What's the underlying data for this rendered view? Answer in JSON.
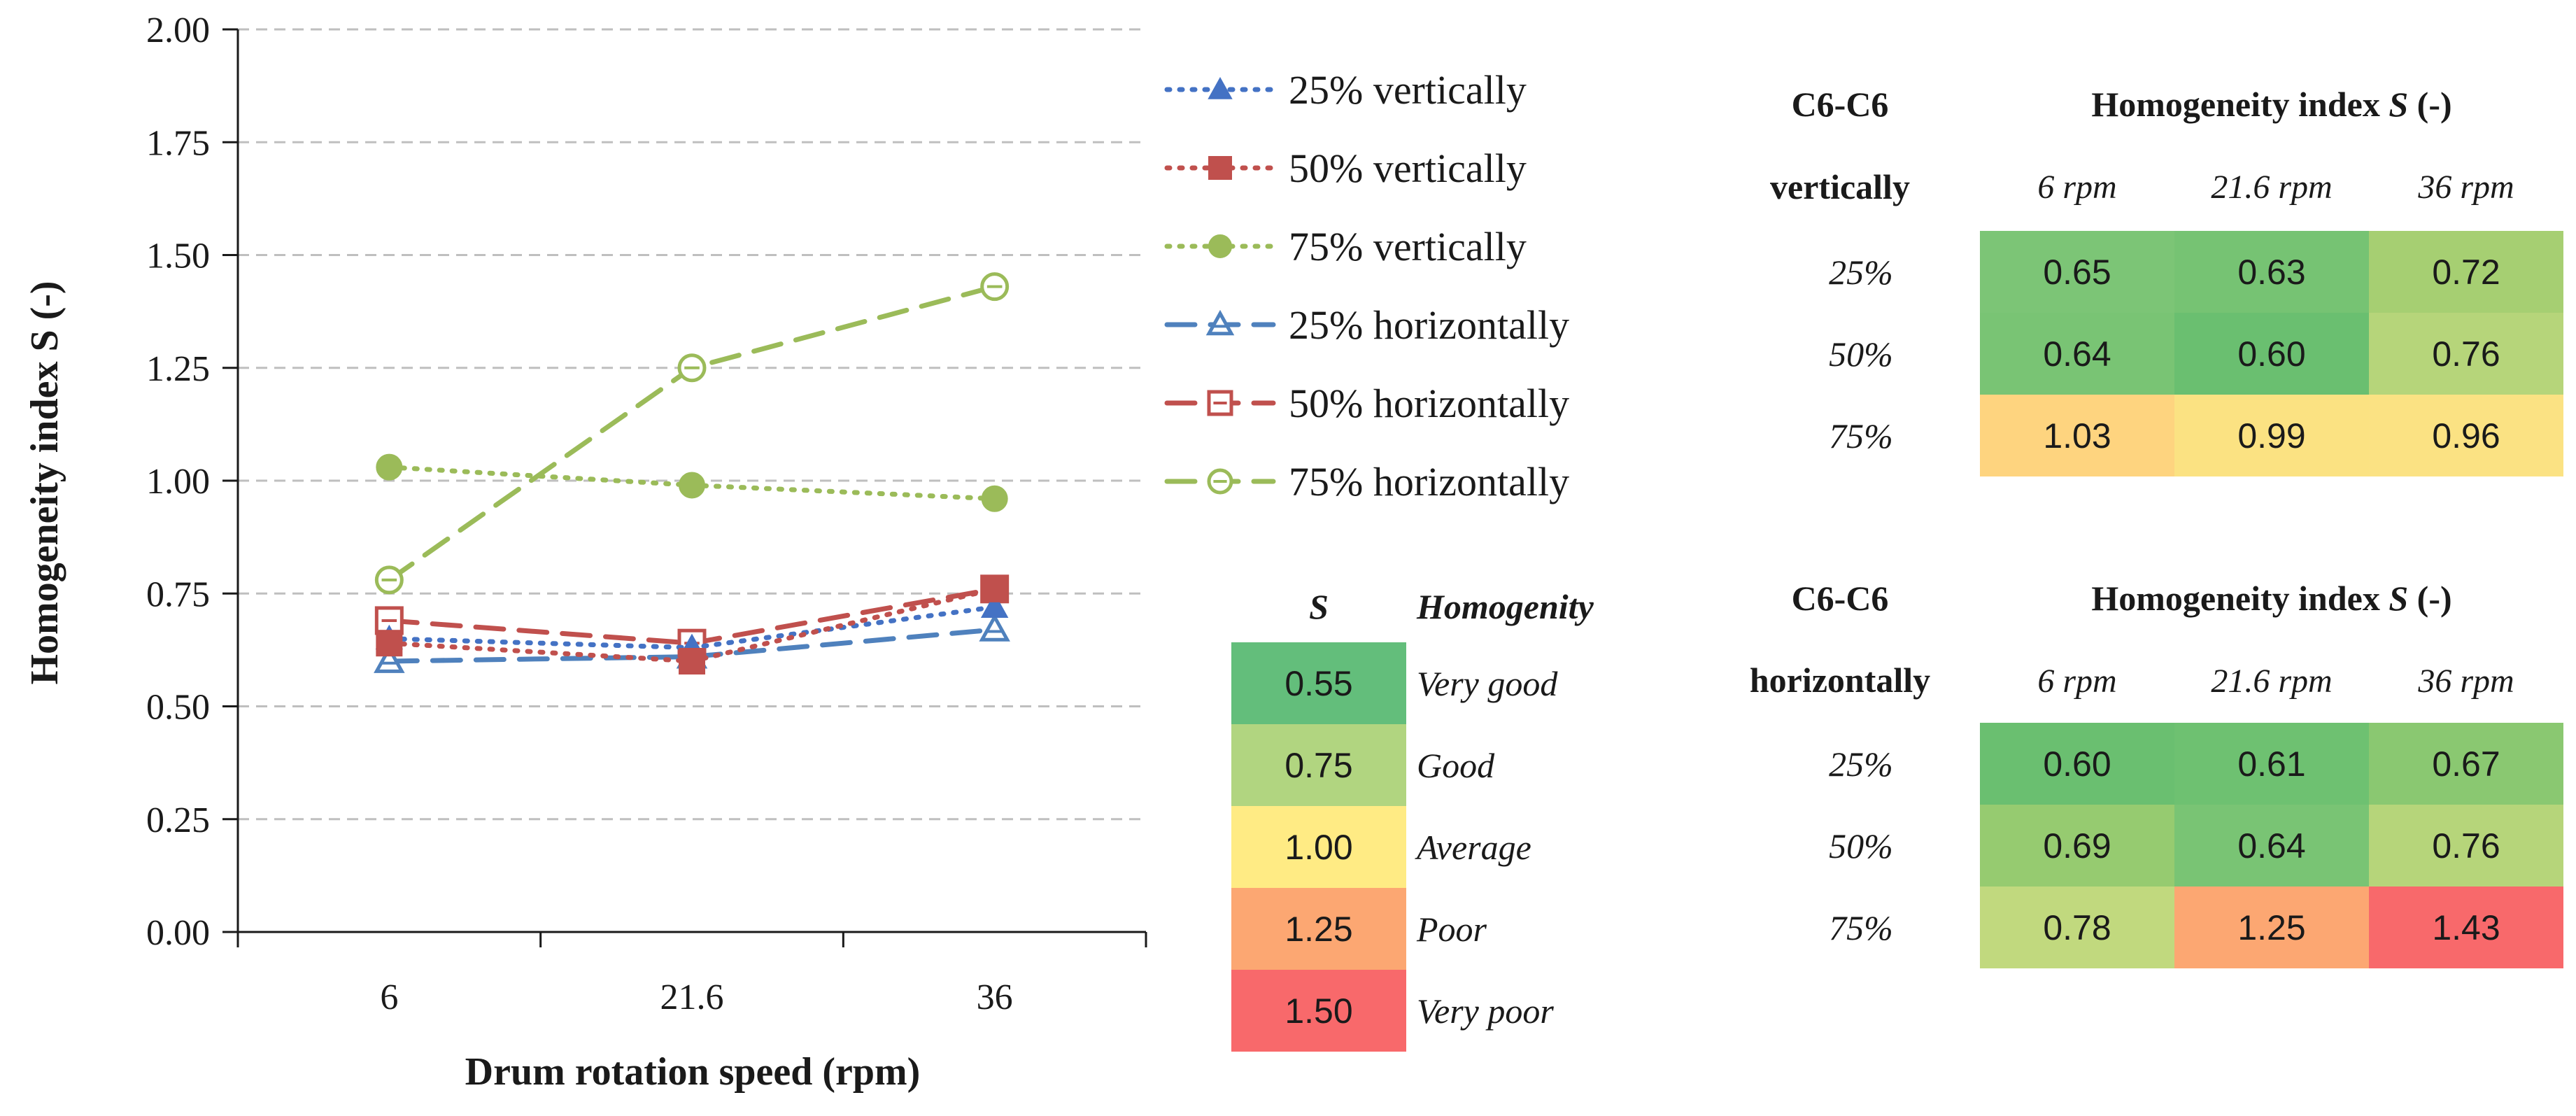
{
  "chart_data": {
    "type": "line",
    "xlabel": "Drum rotation speed (rpm)",
    "ylabel": "Homogeneity index S (-)",
    "categories": [
      "6",
      "21.6",
      "36"
    ],
    "ylim": [
      0,
      2
    ],
    "yticks": [
      "0.00",
      "0.25",
      "0.50",
      "0.75",
      "1.00",
      "1.25",
      "1.50",
      "1.75",
      "2.00"
    ],
    "grid": true,
    "legend_position": "right",
    "series": [
      {
        "name": "25% vertically",
        "values": [
          0.65,
          0.63,
          0.72
        ],
        "color": "#4472C4",
        "line": "dotted",
        "marker": "triangle-filled"
      },
      {
        "name": "50% vertically",
        "values": [
          0.64,
          0.6,
          0.76
        ],
        "color": "#C0504D",
        "line": "dotted",
        "marker": "square-filled"
      },
      {
        "name": "75% vertically",
        "values": [
          1.03,
          0.99,
          0.96
        ],
        "color": "#9BBB59",
        "line": "dotted",
        "marker": "circle-filled"
      },
      {
        "name": "25% horizontally",
        "values": [
          0.6,
          0.61,
          0.67
        ],
        "color": "#4F81BD",
        "line": "dashed",
        "marker": "triangle-open"
      },
      {
        "name": "50% horizontally",
        "values": [
          0.69,
          0.64,
          0.76
        ],
        "color": "#C0504D",
        "line": "dashed",
        "marker": "square-open"
      },
      {
        "name": "75% horizontally",
        "values": [
          0.78,
          1.25,
          1.43
        ],
        "color": "#9BBB59",
        "line": "dashed",
        "marker": "circle-open"
      }
    ]
  },
  "vtable": {
    "corner": "C6-C6",
    "corner2": "vertically",
    "title": "Homogeneity index",
    "title_var": "S",
    "title_unit": "(-)",
    "cols": [
      "6 rpm",
      "21.6 rpm",
      "36 rpm"
    ],
    "rows": [
      {
        "label": "25%",
        "cells": [
          {
            "v": "0.65",
            "c": "#7CC576"
          },
          {
            "v": "0.63",
            "c": "#76C373"
          },
          {
            "v": "0.72",
            "c": "#A6CF72"
          }
        ]
      },
      {
        "label": "50%",
        "cells": [
          {
            "v": "0.64",
            "c": "#79C474"
          },
          {
            "v": "0.60",
            "c": "#6ABF70"
          },
          {
            "v": "0.76",
            "c": "#B6D57A"
          }
        ]
      },
      {
        "label": "75%",
        "cells": [
          {
            "v": "1.03",
            "c": "#FED47F"
          },
          {
            "v": "0.99",
            "c": "#FBE282"
          },
          {
            "v": "0.96",
            "c": "#FBE283"
          }
        ]
      }
    ]
  },
  "htable": {
    "corner": "C6-C6",
    "corner2": "horizontally",
    "title": "Homogeneity index",
    "title_var": "S",
    "title_unit": "(-)",
    "cols": [
      "6 rpm",
      "21.6 rpm",
      "36 rpm"
    ],
    "rows": [
      {
        "label": "25%",
        "cells": [
          {
            "v": "0.60",
            "c": "#6ABF70"
          },
          {
            "v": "0.61",
            "c": "#6EC171"
          },
          {
            "v": "0.67",
            "c": "#8AC871"
          }
        ]
      },
      {
        "label": "50%",
        "cells": [
          {
            "v": "0.69",
            "c": "#96CB70"
          },
          {
            "v": "0.64",
            "c": "#79C474"
          },
          {
            "v": "0.76",
            "c": "#B6D57A"
          }
        ]
      },
      {
        "label": "75%",
        "cells": [
          {
            "v": "0.78",
            "c": "#C1D97E"
          },
          {
            "v": "1.25",
            "c": "#FCA772"
          },
          {
            "v": "1.43",
            "c": "#F8696B"
          }
        ]
      }
    ]
  },
  "scale": {
    "h_s": "S",
    "h_q": "Homogenity",
    "rows": [
      {
        "v": "0.55",
        "q": "Very good",
        "c": "#63BE7B"
      },
      {
        "v": "0.75",
        "q": "Good",
        "c": "#B1D580"
      },
      {
        "v": "1.00",
        "q": "Average",
        "c": "#FFEB84"
      },
      {
        "v": "1.25",
        "q": "Poor",
        "c": "#FCA772"
      },
      {
        "v": "1.50",
        "q": "Very poor",
        "c": "#F8696B"
      }
    ]
  }
}
